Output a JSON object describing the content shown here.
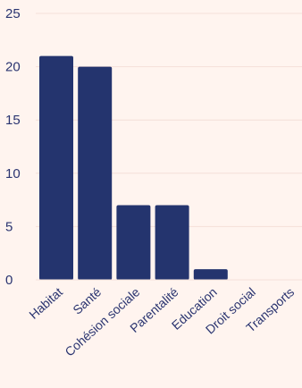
{
  "chart_data": {
    "type": "bar",
    "categories": [
      "Habitat",
      "Santé",
      "Cohésion sociale",
      "Parentalité",
      "Education",
      "Droit social",
      "Transports"
    ],
    "values": [
      21,
      20,
      7,
      7,
      1,
      0,
      0
    ],
    "ylim": [
      0,
      25
    ],
    "yticks": [
      0,
      5,
      10,
      15,
      20,
      25
    ],
    "grid": true,
    "colors": {
      "bar": "#24346e",
      "text": "#2a3470",
      "background": "#fff4ef",
      "grid": "#f4dfd8"
    }
  }
}
